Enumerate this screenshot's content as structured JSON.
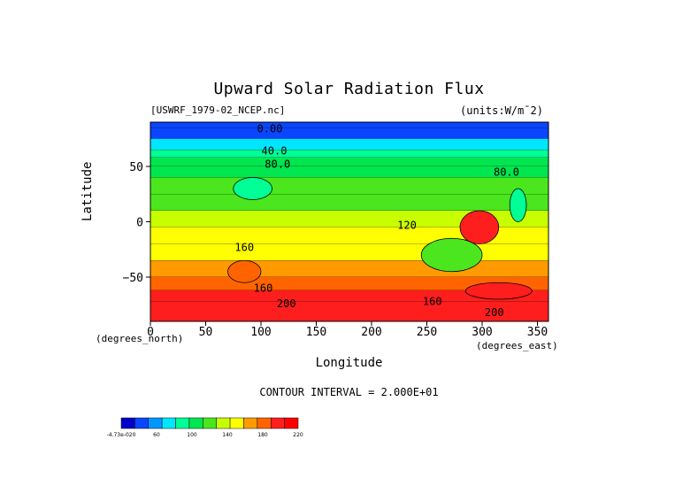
{
  "figure": {
    "title": "Upward Solar Radiation Flux",
    "source_file": "[USWRF_1979-02_NCEP.nc]",
    "units": "(units:W/m¯2)",
    "contour_interval": "CONTOUR INTERVAL = 2.000E+01",
    "x_unit": "(degrees_east)",
    "y_unit": "(degrees_north)"
  },
  "chart_data": {
    "type": "heatmap",
    "title": "Upward Solar Radiation Flux",
    "xlabel": "Longitude",
    "ylabel": "Latitude",
    "xlim": [
      0,
      360
    ],
    "ylim": [
      -90,
      90
    ],
    "x_ticks": [
      0,
      50,
      100,
      150,
      200,
      250,
      300,
      350
    ],
    "y_ticks": [
      50,
      0,
      -50
    ],
    "grid": false,
    "colorbar": {
      "levels": [
        -4.73e-20,
        20,
        40,
        60,
        80,
        100,
        120,
        140,
        160,
        180,
        200,
        220
      ],
      "labels": [
        "-4.73e-020",
        "60",
        "100",
        "140",
        "180",
        "220"
      ],
      "colors": [
        "#0000c8",
        "#0a46ff",
        "#0096ff",
        "#00e6ff",
        "#00ff96",
        "#00e650",
        "#4be61e",
        "#c8ff00",
        "#ffff00",
        "#ff9b00",
        "#ff6400",
        "#ff1e1e",
        "#ff0000"
      ]
    },
    "latitude_bands": [
      {
        "lat": [
          85,
          90
        ],
        "value": 0
      },
      {
        "lat": [
          75,
          85
        ],
        "value": 10
      },
      {
        "lat": [
          65,
          75
        ],
        "value": 40
      },
      {
        "lat": [
          58,
          65
        ],
        "value": 65
      },
      {
        "lat": [
          50,
          58
        ],
        "value": 85
      },
      {
        "lat": [
          40,
          50
        ],
        "value": 95
      },
      {
        "lat": [
          25,
          40
        ],
        "value": 105
      },
      {
        "lat": [
          10,
          25
        ],
        "value": 115
      },
      {
        "lat": [
          -5,
          10
        ],
        "value": 130
      },
      {
        "lat": [
          -20,
          -5
        ],
        "value": 145
      },
      {
        "lat": [
          -35,
          -20
        ],
        "value": 155
      },
      {
        "lat": [
          -50,
          -35
        ],
        "value": 170
      },
      {
        "lat": [
          -62,
          -50
        ],
        "value": 185
      },
      {
        "lat": [
          -72,
          -62
        ],
        "value": 200
      },
      {
        "lat": [
          -90,
          -72
        ],
        "value": 215
      }
    ],
    "regions": [
      {
        "lon": [
          280,
          315
        ],
        "lat": [
          -20,
          10
        ],
        "value": 205
      },
      {
        "lon": [
          245,
          300
        ],
        "lat": [
          -45,
          -15
        ],
        "value": 110
      },
      {
        "lon": [
          325,
          340
        ],
        "lat": [
          0,
          30
        ],
        "value": 60
      },
      {
        "lon": [
          70,
          100
        ],
        "lat": [
          -55,
          -35
        ],
        "value": 195
      },
      {
        "lon": [
          285,
          345
        ],
        "lat": [
          -70,
          -55
        ],
        "value": 205
      },
      {
        "lon": [
          75,
          110
        ],
        "lat": [
          20,
          40
        ],
        "value": 75
      }
    ],
    "contour_labels": [
      {
        "text": "0.00",
        "lon": 108,
        "lat": 84
      },
      {
        "text": "40.0",
        "lon": 112,
        "lat": 64
      },
      {
        "text": "80.0",
        "lon": 115,
        "lat": 52
      },
      {
        "text": "80.0",
        "lon": 322,
        "lat": 45
      },
      {
        "text": "120",
        "lon": 232,
        "lat": -3
      },
      {
        "text": "160",
        "lon": 85,
        "lat": -23
      },
      {
        "text": "160",
        "lon": 102,
        "lat": -60
      },
      {
        "text": "200",
        "lon": 123,
        "lat": -74
      },
      {
        "text": "160",
        "lon": 255,
        "lat": -72
      },
      {
        "text": "200",
        "lon": 311,
        "lat": -82
      }
    ]
  }
}
